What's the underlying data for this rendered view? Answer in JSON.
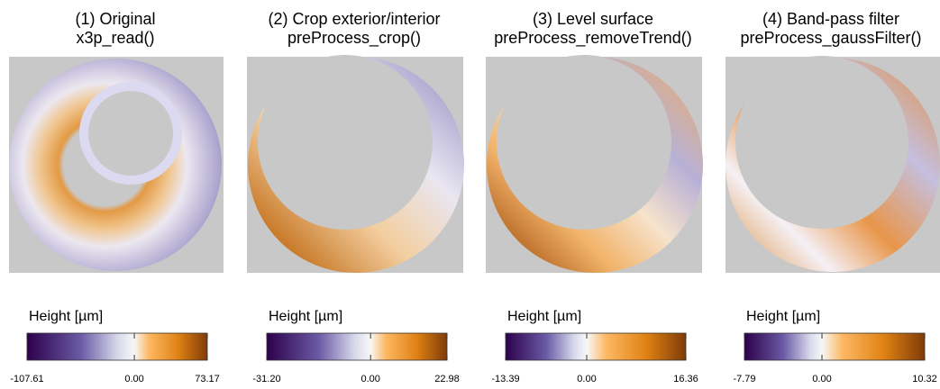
{
  "panels": [
    {
      "title": [
        "(1) Original",
        "x3p_read()"
      ],
      "legend_title": "Height [µm]",
      "lim": [
        -107.61,
        73.17
      ],
      "ticks": [
        -107.61,
        {
          "value": 0,
          "label": "0.00"
        },
        73.17
      ]
    },
    {
      "title": [
        "(2) Crop exterior/interior",
        "preProcess_crop()"
      ],
      "legend_title": "Height [µm]",
      "lim": [
        -31.2,
        22.98
      ],
      "ticks": [
        {
          "value": -31.2,
          "label": "-31.20"
        },
        {
          "value": 0,
          "label": "0.00"
        },
        22.98
      ]
    },
    {
      "title": [
        "(3) Level surface",
        "preProcess_removeTrend()"
      ],
      "legend_title": "Height [µm]",
      "lim": [
        -13.39,
        16.36
      ],
      "ticks": [
        -13.39,
        {
          "value": 0,
          "label": "0.00"
        },
        16.36
      ]
    },
    {
      "title": [
        "(4) Band-pass filter",
        "preProcess_gaussFilter()"
      ],
      "legend_title": "Height [µm]",
      "lim": [
        -7.79,
        10.32
      ],
      "ticks": [
        -7.79,
        {
          "value": 0,
          "label": "0.00"
        },
        10.32
      ]
    }
  ]
}
